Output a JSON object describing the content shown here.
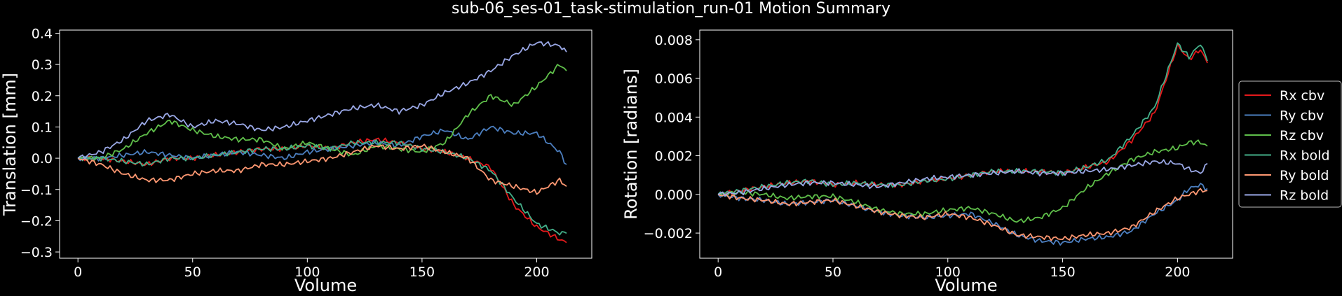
{
  "figure": {
    "title": "sub-06_ses-01_task-stimulation_run-01 Motion Summary"
  },
  "legend": {
    "placement": "right-outside",
    "entries": [
      "Rx cbv",
      "Ry cbv",
      "Rz cbv",
      "Rx bold",
      "Ry bold",
      "Rz bold"
    ]
  },
  "chart_data": [
    {
      "type": "line",
      "panel": "translation",
      "title": "",
      "xlabel": "Volume",
      "ylabel": "Translation [mm]",
      "xlim": [
        -8,
        224
      ],
      "ylim": [
        -0.32,
        0.41
      ],
      "xticks": [
        0,
        50,
        100,
        150,
        200
      ],
      "xtick_labels": [
        "0",
        "50",
        "100",
        "150",
        "200"
      ],
      "yticks": [
        -0.3,
        -0.2,
        -0.1,
        0.0,
        0.1,
        0.2,
        0.3,
        0.4
      ],
      "ytick_labels": [
        "−0.3",
        "−0.2",
        "−0.1",
        "0.0",
        "0.1",
        "0.2",
        "0.3",
        "0.4"
      ],
      "x": [
        0,
        10,
        20,
        30,
        40,
        50,
        60,
        70,
        80,
        90,
        100,
        110,
        120,
        130,
        140,
        150,
        160,
        170,
        180,
        190,
        200,
        210,
        213
      ],
      "series": [
        {
          "name": "Rx cbv",
          "color": "#e41a1c",
          "values": [
            0,
            0.0,
            -0.01,
            -0.02,
            0.0,
            0.0,
            0.01,
            0.02,
            0.03,
            0.03,
            0.04,
            0.03,
            0.05,
            0.06,
            0.05,
            0.03,
            0.02,
            0.0,
            -0.03,
            -0.15,
            -0.22,
            -0.26,
            -0.27
          ]
        },
        {
          "name": "Ry cbv",
          "color": "#4c7fc0",
          "values": [
            0,
            0.0,
            0.01,
            0.02,
            0.01,
            0.0,
            0.01,
            0.02,
            0.01,
            0.0,
            0.02,
            0.03,
            0.04,
            0.05,
            0.04,
            0.07,
            0.09,
            0.06,
            0.1,
            0.08,
            0.08,
            0.02,
            -0.02
          ]
        },
        {
          "name": "Rz cbv",
          "color": "#5fbf4a",
          "values": [
            0,
            0.0,
            0.03,
            0.08,
            0.12,
            0.09,
            0.07,
            0.06,
            0.06,
            0.03,
            0.05,
            0.03,
            0.01,
            0.04,
            0.03,
            0.02,
            0.05,
            0.14,
            0.2,
            0.17,
            0.23,
            0.3,
            0.28
          ]
        },
        {
          "name": "Rx bold",
          "color": "#44b08a",
          "values": [
            0,
            0.0,
            -0.01,
            -0.02,
            0.0,
            0.0,
            0.01,
            0.02,
            0.03,
            0.03,
            0.04,
            0.03,
            0.05,
            0.05,
            0.05,
            0.03,
            0.02,
            0.0,
            -0.04,
            -0.13,
            -0.21,
            -0.24,
            -0.24
          ]
        },
        {
          "name": "Ry bold",
          "color": "#ff9872",
          "values": [
            0,
            -0.02,
            -0.05,
            -0.07,
            -0.07,
            -0.05,
            -0.04,
            -0.04,
            -0.02,
            -0.02,
            -0.01,
            0.0,
            0.02,
            0.04,
            0.03,
            0.04,
            0.02,
            0.0,
            -0.07,
            -0.09,
            -0.11,
            -0.07,
            -0.09
          ]
        },
        {
          "name": "Rz bold",
          "color": "#9aa8e6",
          "values": [
            0,
            0.02,
            0.06,
            0.12,
            0.14,
            0.1,
            0.12,
            0.11,
            0.09,
            0.1,
            0.12,
            0.14,
            0.16,
            0.17,
            0.15,
            0.17,
            0.21,
            0.24,
            0.28,
            0.33,
            0.37,
            0.36,
            0.34
          ]
        }
      ]
    },
    {
      "type": "line",
      "panel": "rotation",
      "title": "",
      "xlabel": "Volume",
      "ylabel": "Rotation [radians]",
      "xlim": [
        -8,
        224
      ],
      "ylim": [
        -0.0033,
        0.0085
      ],
      "xticks": [
        0,
        50,
        100,
        150,
        200
      ],
      "xtick_labels": [
        "0",
        "50",
        "100",
        "150",
        "200"
      ],
      "yticks": [
        -0.002,
        0.0,
        0.002,
        0.004,
        0.006,
        0.008
      ],
      "ytick_labels": [
        "−0.002",
        "0.000",
        "0.002",
        "0.004",
        "0.006",
        "0.008"
      ],
      "x": [
        0,
        10,
        20,
        30,
        40,
        50,
        60,
        70,
        80,
        90,
        100,
        110,
        120,
        130,
        140,
        150,
        160,
        170,
        180,
        190,
        200,
        205,
        210,
        213
      ],
      "series": [
        {
          "name": "Rx cbv",
          "color": "#e41a1c",
          "values": [
            0.0,
            0.0002,
            0.0004,
            0.0006,
            0.0007,
            0.0005,
            0.0006,
            0.0005,
            0.0005,
            0.0007,
            0.0008,
            0.001,
            0.0012,
            0.0012,
            0.0012,
            0.0011,
            0.0014,
            0.0017,
            0.0028,
            0.0042,
            0.0077,
            0.007,
            0.0075,
            0.0068
          ]
        },
        {
          "name": "Ry cbv",
          "color": "#4c7fc0",
          "values": [
            0.0,
            -0.0002,
            -0.0003,
            -0.0005,
            -0.0004,
            -0.0003,
            -0.0006,
            -0.0009,
            -0.0011,
            -0.0012,
            -0.0011,
            -0.001,
            -0.0015,
            -0.0021,
            -0.0024,
            -0.0025,
            -0.0023,
            -0.0022,
            -0.0019,
            -0.001,
            -0.0003,
            0.0003,
            0.0005,
            0.0003
          ]
        },
        {
          "name": "Rz cbv",
          "color": "#5fbf4a",
          "values": [
            0.0,
            0.0001,
            0.0,
            -0.0002,
            -0.0001,
            -0.0001,
            -0.0004,
            -0.0008,
            -0.001,
            -0.001,
            -0.0008,
            -0.0007,
            -0.001,
            -0.0014,
            -0.0012,
            -0.0007,
            0.0003,
            0.0011,
            0.0018,
            0.0022,
            0.0024,
            0.0027,
            0.0027,
            0.0025
          ]
        },
        {
          "name": "Rx bold",
          "color": "#44b08a",
          "values": [
            0.0,
            0.0002,
            0.0004,
            0.0006,
            0.0007,
            0.0005,
            0.0006,
            0.0005,
            0.0005,
            0.0007,
            0.0008,
            0.001,
            0.0012,
            0.0012,
            0.0012,
            0.0011,
            0.0014,
            0.0018,
            0.003,
            0.0045,
            0.0078,
            0.0071,
            0.0078,
            0.0069
          ]
        },
        {
          "name": "Ry bold",
          "color": "#ff9872",
          "values": [
            0.0,
            -0.0002,
            -0.0003,
            -0.0005,
            -0.0004,
            -0.0003,
            -0.0006,
            -0.0009,
            -0.0011,
            -0.0012,
            -0.001,
            -0.0012,
            -0.0016,
            -0.0021,
            -0.0022,
            -0.0023,
            -0.0021,
            -0.002,
            -0.0017,
            -0.0009,
            -0.0002,
            0.0,
            0.0002,
            0.0002
          ]
        },
        {
          "name": "Rz bold",
          "color": "#9aa8e6",
          "values": [
            0.0,
            0.0001,
            0.0003,
            0.0005,
            0.0006,
            0.0006,
            0.0005,
            0.0004,
            0.0006,
            0.0008,
            0.0009,
            0.001,
            0.0011,
            0.0012,
            0.0011,
            0.0011,
            0.0012,
            0.0013,
            0.0015,
            0.0017,
            0.0016,
            0.0013,
            0.0011,
            0.0016
          ]
        }
      ]
    }
  ]
}
